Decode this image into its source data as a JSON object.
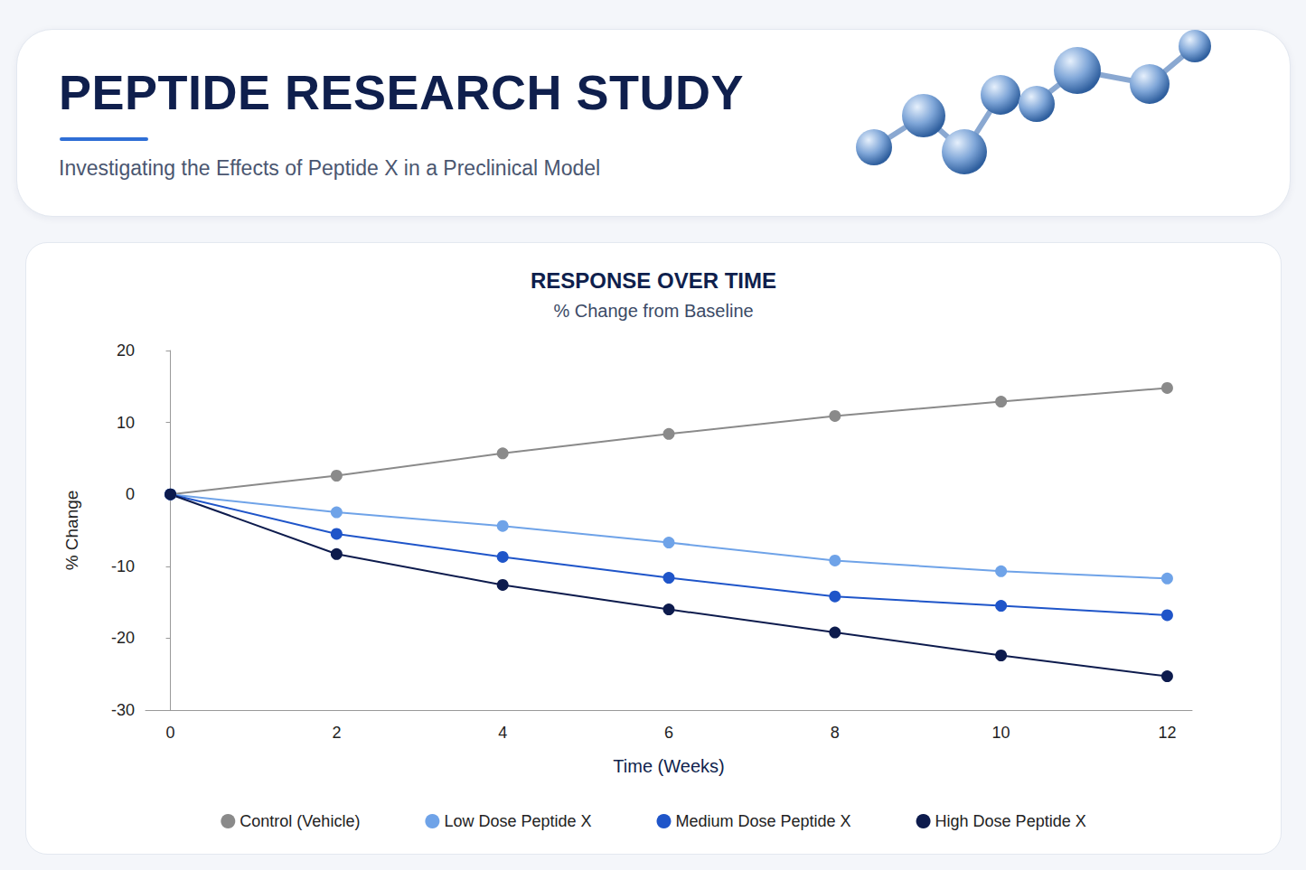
{
  "header": {
    "title": "PEPTIDE RESEARCH STUDY",
    "subtitle": "Investigating the Effects of Peptide X in a Preclinical Model"
  },
  "chart_data": {
    "type": "line",
    "title": "RESPONSE OVER TIME",
    "subtitle": "% Change from Baseline",
    "x_label": "Time (Weeks)",
    "y_label": "% Change",
    "x": [
      0,
      2,
      4,
      6,
      8,
      10,
      12
    ],
    "series": [
      {
        "name": "Control (Vehicle)",
        "color": "#8a8a8a",
        "values": [
          0,
          2.6,
          5.7,
          8.4,
          10.9,
          12.9,
          14.8
        ]
      },
      {
        "name": "Low Dose Peptide X",
        "color": "#6fa3e8",
        "values": [
          0,
          -2.5,
          -4.4,
          -6.7,
          -9.2,
          -10.7,
          -11.7
        ]
      },
      {
        "name": "Medium Dose Peptide X",
        "color": "#1f55c9",
        "values": [
          0,
          -5.5,
          -8.7,
          -11.6,
          -14.2,
          -15.5,
          -16.8
        ]
      },
      {
        "name": "High Dose Peptide X",
        "color": "#0d1b4d",
        "values": [
          0,
          -8.3,
          -12.6,
          -16.0,
          -19.2,
          -22.4,
          -25.3
        ]
      }
    ],
    "xlim": [
      -0.3,
      12.3
    ],
    "xticks": [
      0,
      2,
      4,
      6,
      8,
      10,
      12
    ],
    "ylim": [
      -30,
      20
    ],
    "yticks": [
      -30,
      -20,
      -10,
      0,
      10,
      20
    ],
    "grid": false,
    "legend": "bottom",
    "marker": "circle"
  }
}
